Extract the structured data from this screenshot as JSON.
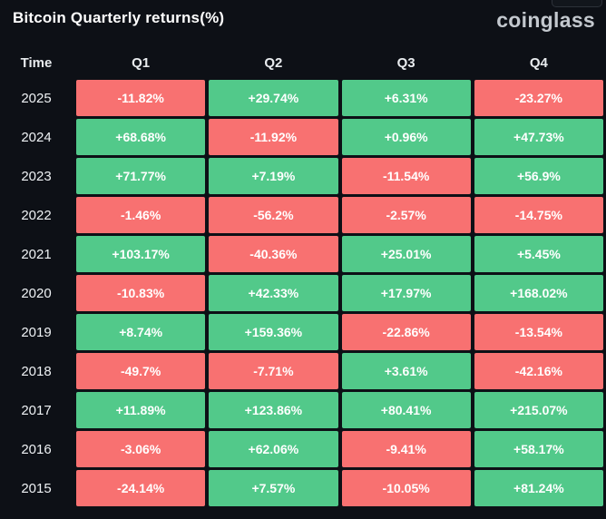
{
  "header": {
    "title": "Bitcoin Quarterly returns(%)",
    "logo": "coinglass"
  },
  "colors": {
    "background": "#0d1016",
    "positive": "#52c98a",
    "negative": "#f87171",
    "title_text": "#ffffff",
    "header_text": "#e9ecef",
    "logo_text": "#c3c8ce"
  },
  "chart_data": {
    "type": "table",
    "title": "Bitcoin Quarterly returns(%)",
    "columns": [
      "Time",
      "Q1",
      "Q2",
      "Q3",
      "Q4"
    ],
    "rows": [
      {
        "time": "2025",
        "values": [
          "-11.82%",
          "+29.74%",
          "+6.31%",
          "-23.27%"
        ]
      },
      {
        "time": "2024",
        "values": [
          "+68.68%",
          "-11.92%",
          "+0.96%",
          "+47.73%"
        ]
      },
      {
        "time": "2023",
        "values": [
          "+71.77%",
          "+7.19%",
          "-11.54%",
          "+56.9%"
        ]
      },
      {
        "time": "2022",
        "values": [
          "-1.46%",
          "-56.2%",
          "-2.57%",
          "-14.75%"
        ]
      },
      {
        "time": "2021",
        "values": [
          "+103.17%",
          "-40.36%",
          "+25.01%",
          "+5.45%"
        ]
      },
      {
        "time": "2020",
        "values": [
          "-10.83%",
          "+42.33%",
          "+17.97%",
          "+168.02%"
        ]
      },
      {
        "time": "2019",
        "values": [
          "+8.74%",
          "+159.36%",
          "-22.86%",
          "-13.54%"
        ]
      },
      {
        "time": "2018",
        "values": [
          "-49.7%",
          "-7.71%",
          "+3.61%",
          "-42.16%"
        ]
      },
      {
        "time": "2017",
        "values": [
          "+11.89%",
          "+123.86%",
          "+80.41%",
          "+215.07%"
        ]
      },
      {
        "time": "2016",
        "values": [
          "-3.06%",
          "+62.06%",
          "-9.41%",
          "+58.17%"
        ]
      },
      {
        "time": "2015",
        "values": [
          "-24.14%",
          "+7.57%",
          "-10.05%",
          "+81.24%"
        ]
      }
    ],
    "color_rule": "positive values green, negative values red",
    "legend": "none",
    "grid": "off"
  }
}
